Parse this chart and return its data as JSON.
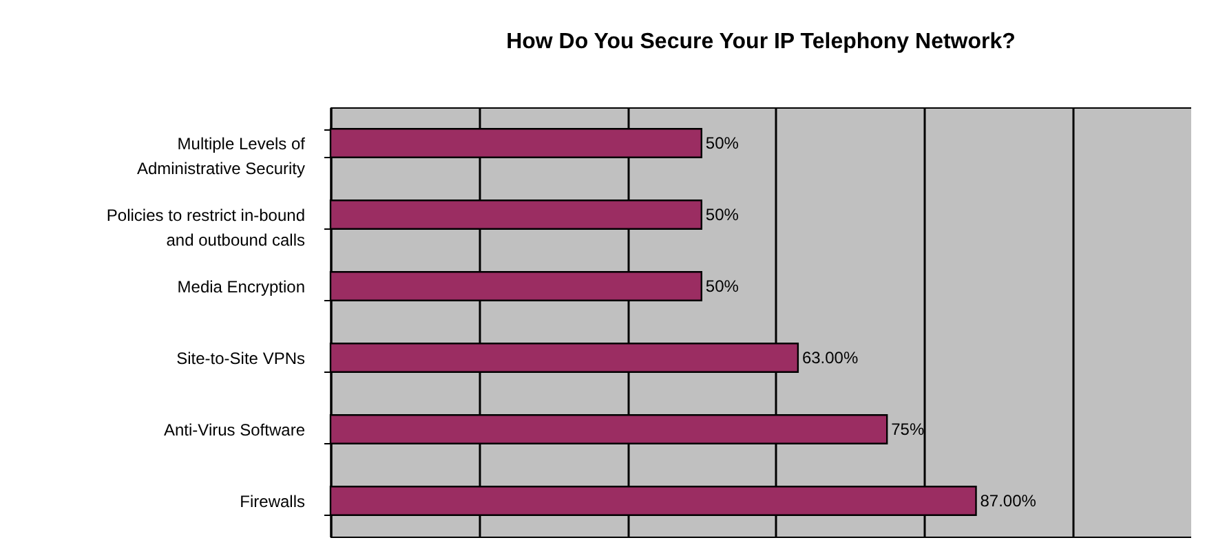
{
  "chart_data": {
    "type": "bar",
    "orientation": "horizontal",
    "title": "How Do You Secure Your IP Telephony Network?",
    "categories": [
      "Multiple Levels of\nAdministrative Security",
      "Policies to restrict in-bound\nand outbound calls",
      "Media Encryption",
      "Site-to-Site VPNs",
      "Anti-Virus Software",
      "Firewalls"
    ],
    "values": [
      50,
      50,
      50,
      63,
      75,
      87
    ],
    "value_labels": [
      "50%",
      "50%",
      "50%",
      "63.00%",
      "75%",
      "87.00%"
    ],
    "color": "#9b2d62",
    "xlim": [
      0,
      116
    ],
    "xticks": [
      {
        "value": 0,
        "label": null
      },
      {
        "value": 20,
        "label": null
      },
      {
        "value": 40,
        "label": null
      },
      {
        "value": 60,
        "label": null
      },
      {
        "value": 80,
        "label": null
      },
      {
        "value": 100,
        "label": null
      }
    ],
    "tick_labels": "y",
    "grid": "x"
  }
}
